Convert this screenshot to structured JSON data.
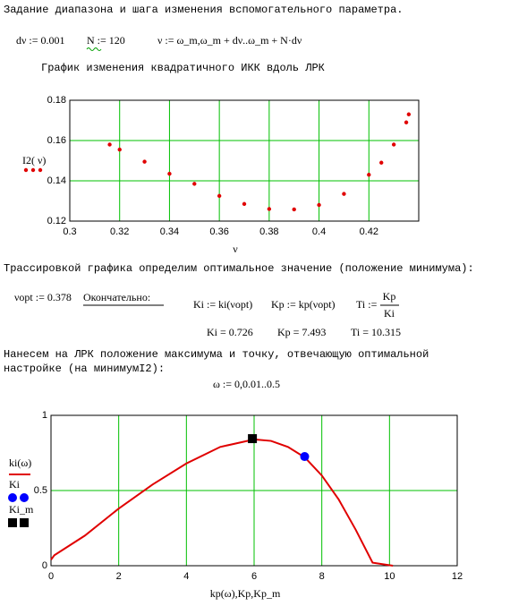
{
  "texts": {
    "heading1": "Задание диапазона и шага изменения вспомогательного параметра.",
    "dnu_def": "dν := 0.001",
    "n_def": "N := 120",
    "nu_def": "ν := ω_m,ω_m + dν..ω_m + N·dν",
    "graph_title": "График изменения квадратичного ИКК вдоль ЛРК",
    "trace_text": "Трассировкой графика определим оптимальное значение (положение минимума):",
    "nuopt_def": "νopt := 0.378",
    "final_label": "Окончательно:",
    "ki_def": "Ki := ki(νopt)",
    "kp_def": "Kp := kp(νopt)",
    "ti_def": "Ti :=",
    "ti_num": "Kp",
    "ti_den": "Ki",
    "ki_result": "Ki = 0.726",
    "kp_result": "Kp = 7.493",
    "ti_result": "Ti = 10.315",
    "mark_text_1": "Нанесем на ЛРК положение максимума и точку, отвечающую оптимальной",
    "mark_text_2": "настройке (на минимумI2):",
    "omega_def": "ω := 0,0.01..0.5"
  },
  "chart_data": [
    {
      "type": "scatter",
      "x_label": "ν",
      "grid": true,
      "grid_color": "#00c000",
      "xlim": [
        0.3,
        0.44
      ],
      "xticks": [
        0.3,
        0.32,
        0.34,
        0.36,
        0.38,
        0.4,
        0.42
      ],
      "ylim": [
        0.12,
        0.18
      ],
      "yticks": [
        0.12,
        0.14,
        0.16,
        0.18
      ],
      "series": [
        {
          "name": "I2( ν)",
          "color": "#e00000",
          "marker": "circle",
          "x": [
            0.316,
            0.32,
            0.33,
            0.34,
            0.35,
            0.36,
            0.37,
            0.38,
            0.39,
            0.4,
            0.41,
            0.42,
            0.425,
            0.43,
            0.435,
            0.436
          ],
          "values": [
            0.158,
            0.1555,
            0.1495,
            0.1435,
            0.1385,
            0.1325,
            0.1285,
            0.126,
            0.1258,
            0.128,
            0.1335,
            0.143,
            0.149,
            0.158,
            0.169,
            0.173
          ]
        }
      ]
    },
    {
      "type": "line",
      "x_label": "kp(ω),Kp,Kp_m",
      "grid": true,
      "grid_color": "#00c000",
      "xlim": [
        0,
        12
      ],
      "xticks": [
        0,
        2,
        4,
        6,
        8,
        10,
        12
      ],
      "ylim": [
        0,
        1
      ],
      "yticks": [
        0,
        0.5,
        1
      ],
      "series": [
        {
          "name": "ki(ω)",
          "color": "#e00000",
          "marker": "line",
          "x": [
            0,
            0.1,
            1,
            2,
            3,
            4,
            5,
            6,
            6.5,
            7,
            7.5,
            8,
            8.5,
            9,
            9.5,
            10.1
          ],
          "values": [
            0.04,
            0.07,
            0.2,
            0.38,
            0.54,
            0.68,
            0.79,
            0.84,
            0.83,
            0.79,
            0.72,
            0.6,
            0.44,
            0.24,
            0.02,
            0
          ]
        },
        {
          "name": "Ki",
          "color": "#0000ff",
          "marker": "circle",
          "x": [
            7.493
          ],
          "values": [
            0.726
          ]
        },
        {
          "name": "Ki_m",
          "color": "#000000",
          "marker": "square",
          "x": [
            5.95
          ],
          "values": [
            0.845
          ]
        }
      ]
    }
  ]
}
